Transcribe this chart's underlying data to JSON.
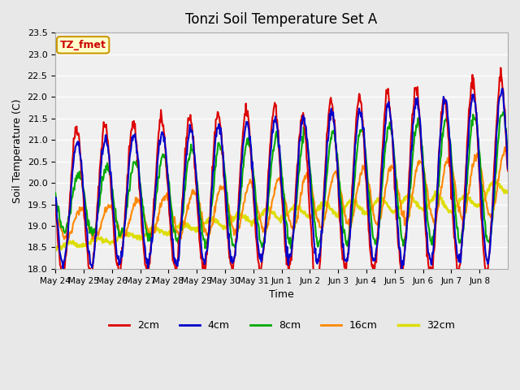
{
  "title": "Tonzi Soil Temperature Set A",
  "xlabel": "Time",
  "ylabel": "Soil Temperature (C)",
  "annotation": "TZ_fmet",
  "annotation_bg": "#ffffcc",
  "annotation_border": "#cc9900",
  "annotation_text_color": "#cc0000",
  "ylim": [
    18.0,
    23.5
  ],
  "yticks": [
    18.0,
    18.5,
    19.0,
    19.5,
    20.0,
    20.5,
    21.0,
    21.5,
    22.0,
    22.5,
    23.0,
    23.5
  ],
  "bg_color": "#e8e8e8",
  "plot_bg": "#f0f0f0",
  "grid_color": "#ffffff",
  "line_colors": {
    "2cm": "#dd0000",
    "4cm": "#0000cc",
    "8cm": "#00aa00",
    "16cm": "#ff8800",
    "32cm": "#dddd00"
  },
  "line_width": 1.5,
  "legend_labels": [
    "2cm",
    "4cm",
    "8cm",
    "16cm",
    "32cm"
  ],
  "x_tick_labels": [
    "May 24",
    "May 25",
    "May 26",
    "May 27",
    "May 28",
    "May 29",
    "May 30",
    "May 31",
    "Jun 1",
    "Jun 2",
    "Jun 3",
    "Jun 4",
    "Jun 5",
    "Jun 6",
    "Jun 7",
    "Jun 8"
  ],
  "num_days": 16
}
